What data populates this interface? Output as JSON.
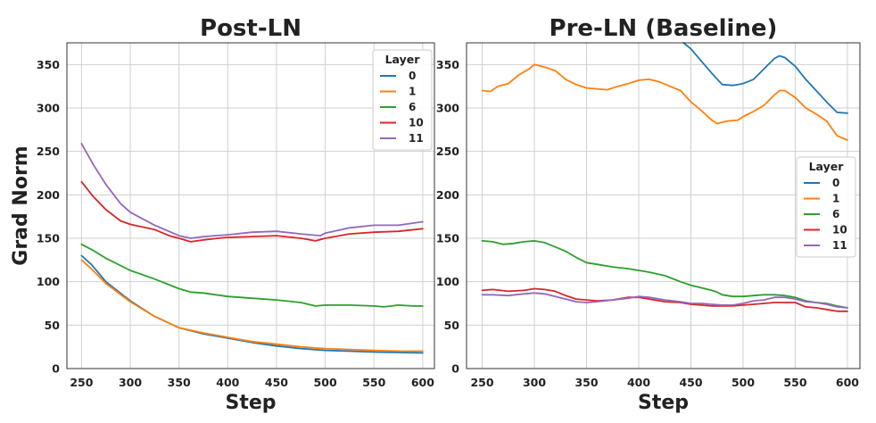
{
  "chart_data": [
    {
      "type": "line",
      "title": "Post-LN",
      "xlabel": "Step",
      "ylabel": "Grad Norm",
      "xlim": [
        235,
        612
      ],
      "ylim": [
        0,
        375
      ],
      "xticks": [
        250,
        300,
        350,
        400,
        450,
        500,
        550,
        600
      ],
      "yticks": [
        0,
        50,
        100,
        150,
        200,
        250,
        300,
        350
      ],
      "grid": true,
      "legend": {
        "title": "Layer",
        "position": "top-right"
      },
      "series": [
        {
          "name": "0",
          "color": "#1f77b4",
          "points": [
            [
              250,
              130
            ],
            [
              260,
              120
            ],
            [
              275,
              100
            ],
            [
              300,
              78
            ],
            [
              325,
              60
            ],
            [
              350,
              47
            ],
            [
              375,
              40
            ],
            [
              400,
              35
            ],
            [
              425,
              30
            ],
            [
              450,
              26
            ],
            [
              475,
              23
            ],
            [
              500,
              21
            ],
            [
              525,
              20
            ],
            [
              550,
              19
            ],
            [
              575,
              18.5
            ],
            [
              600,
              18
            ]
          ]
        },
        {
          "name": "1",
          "color": "#ff7f0e",
          "points": [
            [
              250,
              125
            ],
            [
              260,
              115
            ],
            [
              275,
              98
            ],
            [
              300,
              77
            ],
            [
              325,
              60
            ],
            [
              350,
              47
            ],
            [
              375,
              41
            ],
            [
              400,
              36
            ],
            [
              425,
              31
            ],
            [
              450,
              28
            ],
            [
              475,
              25
            ],
            [
              500,
              23
            ],
            [
              525,
              22
            ],
            [
              550,
              21
            ],
            [
              575,
              20
            ],
            [
              600,
              20
            ]
          ]
        },
        {
          "name": "6",
          "color": "#2ca02c",
          "points": [
            [
              250,
              143
            ],
            [
              262,
              136
            ],
            [
              275,
              127
            ],
            [
              300,
              113
            ],
            [
              325,
              103
            ],
            [
              350,
              92
            ],
            [
              362,
              88
            ],
            [
              375,
              87
            ],
            [
              400,
              83
            ],
            [
              425,
              81
            ],
            [
              450,
              79
            ],
            [
              475,
              76
            ],
            [
              490,
              72
            ],
            [
              500,
              73
            ],
            [
              525,
              73
            ],
            [
              550,
              72
            ],
            [
              560,
              71
            ],
            [
              575,
              73
            ],
            [
              590,
              72
            ],
            [
              600,
              72
            ]
          ]
        },
        {
          "name": "10",
          "color": "#d62728",
          "points": [
            [
              250,
              215
            ],
            [
              262,
              198
            ],
            [
              275,
              183
            ],
            [
              290,
              170
            ],
            [
              300,
              166
            ],
            [
              325,
              160
            ],
            [
              340,
              153
            ],
            [
              350,
              150
            ],
            [
              362,
              146
            ],
            [
              375,
              148
            ],
            [
              390,
              150
            ],
            [
              400,
              151
            ],
            [
              425,
              152
            ],
            [
              450,
              153
            ],
            [
              475,
              150
            ],
            [
              490,
              147
            ],
            [
              500,
              150
            ],
            [
              525,
              155
            ],
            [
              550,
              157
            ],
            [
              575,
              158
            ],
            [
              600,
              161
            ]
          ]
        },
        {
          "name": "11",
          "color": "#9467bd",
          "points": [
            [
              250,
              259
            ],
            [
              262,
              235
            ],
            [
              275,
              212
            ],
            [
              290,
              190
            ],
            [
              300,
              180
            ],
            [
              325,
              165
            ],
            [
              350,
              153
            ],
            [
              362,
              150
            ],
            [
              375,
              152
            ],
            [
              400,
              154
            ],
            [
              425,
              157
            ],
            [
              450,
              158
            ],
            [
              475,
              155
            ],
            [
              495,
              153
            ],
            [
              500,
              156
            ],
            [
              525,
              162
            ],
            [
              550,
              165
            ],
            [
              575,
              165
            ],
            [
              600,
              169
            ]
          ]
        }
      ]
    },
    {
      "type": "line",
      "title": "Pre-LN (Baseline)",
      "xlabel": "Step",
      "ylabel": "",
      "xlim": [
        235,
        612
      ],
      "ylim": [
        0,
        375
      ],
      "xticks": [
        250,
        300,
        350,
        400,
        450,
        500,
        550,
        600
      ],
      "yticks": [
        0,
        50,
        100,
        150,
        200,
        250,
        300,
        350
      ],
      "grid": true,
      "legend": {
        "title": "Layer",
        "position": "center-right"
      },
      "series": [
        {
          "name": "0",
          "color": "#1f77b4",
          "points": [
            [
              443,
              378
            ],
            [
              450,
              368
            ],
            [
              460,
              354
            ],
            [
              470,
              340
            ],
            [
              480,
              327
            ],
            [
              490,
              326
            ],
            [
              500,
              328
            ],
            [
              510,
              333
            ],
            [
              520,
              345
            ],
            [
              530,
              357
            ],
            [
              535,
              360
            ],
            [
              540,
              358
            ],
            [
              550,
              348
            ],
            [
              560,
              333
            ],
            [
              570,
              320
            ],
            [
              580,
              307
            ],
            [
              590,
              295
            ],
            [
              600,
              294
            ]
          ]
        },
        {
          "name": "1",
          "color": "#ff7f0e",
          "points": [
            [
              250,
              320
            ],
            [
              258,
              319
            ],
            [
              265,
              325
            ],
            [
              275,
              328
            ],
            [
              285,
              338
            ],
            [
              295,
              345
            ],
            [
              300,
              350
            ],
            [
              310,
              347
            ],
            [
              320,
              343
            ],
            [
              330,
              333
            ],
            [
              340,
              327
            ],
            [
              350,
              323
            ],
            [
              360,
              322
            ],
            [
              370,
              321
            ],
            [
              380,
              325
            ],
            [
              390,
              328
            ],
            [
              400,
              332
            ],
            [
              410,
              333
            ],
            [
              420,
              330
            ],
            [
              430,
              325
            ],
            [
              440,
              320
            ],
            [
              450,
              307
            ],
            [
              460,
              297
            ],
            [
              470,
              286
            ],
            [
              475,
              282
            ],
            [
              485,
              285
            ],
            [
              495,
              286
            ],
            [
              500,
              290
            ],
            [
              510,
              296
            ],
            [
              520,
              303
            ],
            [
              530,
              315
            ],
            [
              535,
              320
            ],
            [
              540,
              320
            ],
            [
              550,
              312
            ],
            [
              560,
              300
            ],
            [
              570,
              293
            ],
            [
              580,
              285
            ],
            [
              590,
              268
            ],
            [
              600,
              263
            ]
          ]
        },
        {
          "name": "6",
          "color": "#2ca02c",
          "points": [
            [
              250,
              147
            ],
            [
              260,
              146
            ],
            [
              270,
              143
            ],
            [
              280,
              144
            ],
            [
              290,
              146
            ],
            [
              300,
              147
            ],
            [
              310,
              145
            ],
            [
              320,
              140
            ],
            [
              330,
              135
            ],
            [
              340,
              128
            ],
            [
              350,
              122
            ],
            [
              360,
              120
            ],
            [
              375,
              117
            ],
            [
              390,
              115
            ],
            [
              400,
              113
            ],
            [
              410,
              111
            ],
            [
              425,
              107
            ],
            [
              440,
              100
            ],
            [
              450,
              96
            ],
            [
              460,
              93
            ],
            [
              470,
              90
            ],
            [
              475,
              88
            ],
            [
              480,
              85
            ],
            [
              490,
              83
            ],
            [
              500,
              83
            ],
            [
              510,
              84
            ],
            [
              520,
              85
            ],
            [
              530,
              85
            ],
            [
              540,
              84
            ],
            [
              550,
              82
            ],
            [
              560,
              78
            ],
            [
              570,
              76
            ],
            [
              580,
              75
            ],
            [
              590,
              72
            ],
            [
              600,
              70
            ]
          ]
        },
        {
          "name": "10",
          "color": "#d62728",
          "points": [
            [
              250,
              90
            ],
            [
              260,
              91
            ],
            [
              275,
              89
            ],
            [
              290,
              90
            ],
            [
              300,
              92
            ],
            [
              310,
              91
            ],
            [
              320,
              89
            ],
            [
              330,
              84
            ],
            [
              340,
              80
            ],
            [
              350,
              79
            ],
            [
              360,
              78
            ],
            [
              375,
              79
            ],
            [
              390,
              82
            ],
            [
              400,
              82
            ],
            [
              410,
              80
            ],
            [
              425,
              77
            ],
            [
              440,
              76
            ],
            [
              450,
              74
            ],
            [
              460,
              73
            ],
            [
              470,
              72
            ],
            [
              480,
              72
            ],
            [
              490,
              72
            ],
            [
              500,
              73
            ],
            [
              510,
              74
            ],
            [
              520,
              75
            ],
            [
              530,
              76
            ],
            [
              540,
              76
            ],
            [
              550,
              76
            ],
            [
              560,
              71
            ],
            [
              570,
              70
            ],
            [
              580,
              68
            ],
            [
              590,
              66
            ],
            [
              600,
              66
            ]
          ]
        },
        {
          "name": "11",
          "color": "#9467bd",
          "points": [
            [
              250,
              85
            ],
            [
              260,
              85
            ],
            [
              275,
              84
            ],
            [
              290,
              86
            ],
            [
              300,
              87
            ],
            [
              310,
              86
            ],
            [
              320,
              83
            ],
            [
              330,
              80
            ],
            [
              340,
              77
            ],
            [
              350,
              76
            ],
            [
              360,
              77
            ],
            [
              375,
              79
            ],
            [
              390,
              81
            ],
            [
              400,
              83
            ],
            [
              410,
              82
            ],
            [
              425,
              79
            ],
            [
              440,
              77
            ],
            [
              450,
              75
            ],
            [
              460,
              75
            ],
            [
              470,
              74
            ],
            [
              480,
              73
            ],
            [
              490,
              73
            ],
            [
              500,
              75
            ],
            [
              510,
              78
            ],
            [
              520,
              79
            ],
            [
              530,
              82
            ],
            [
              540,
              82
            ],
            [
              550,
              80
            ],
            [
              560,
              77
            ],
            [
              570,
              76
            ],
            [
              580,
              74
            ],
            [
              590,
              71
            ],
            [
              600,
              70
            ]
          ]
        }
      ]
    }
  ]
}
